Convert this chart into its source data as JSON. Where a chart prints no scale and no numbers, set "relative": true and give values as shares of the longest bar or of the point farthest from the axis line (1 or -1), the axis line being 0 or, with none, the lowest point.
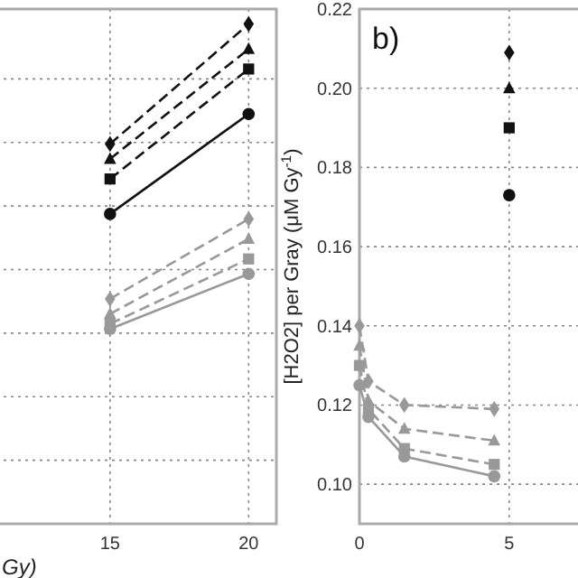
{
  "chart_data": [
    {
      "type": "line",
      "xlabel": "Gy)",
      "relative": true,
      "xlim": [
        10.9,
        21
      ],
      "xticks": [
        15,
        20
      ],
      "tick_labels": "x",
      "grid": true,
      "series": [
        {
          "x": [
            15,
            20
          ],
          "values": [
            0.76,
            1.0
          ],
          "color": "#111111",
          "marker": "diamond",
          "line_style": "dashed"
        },
        {
          "x": [
            15,
            20
          ],
          "values": [
            0.73,
            0.95
          ],
          "color": "#111111",
          "marker": "triangle",
          "line_style": "dashed"
        },
        {
          "x": [
            15,
            20
          ],
          "values": [
            0.69,
            0.91
          ],
          "color": "#111111",
          "marker": "square",
          "line_style": "dashed"
        },
        {
          "x": [
            15,
            20
          ],
          "values": [
            0.62,
            0.82
          ],
          "color": "#111111",
          "marker": "circle",
          "line_style": "solid"
        },
        {
          "x": [
            15,
            20
          ],
          "values": [
            0.45,
            0.61
          ],
          "color": "#999999",
          "marker": "diamond",
          "line_style": "dashed"
        },
        {
          "x": [
            15,
            20
          ],
          "values": [
            0.42,
            0.57
          ],
          "color": "#999999",
          "marker": "triangle",
          "line_style": "dashed"
        },
        {
          "x": [
            15,
            20
          ],
          "values": [
            0.4,
            0.53
          ],
          "color": "#999999",
          "marker": "square",
          "line_style": "dashed"
        },
        {
          "x": [
            15,
            20
          ],
          "values": [
            0.39,
            0.5
          ],
          "color": "#999999",
          "marker": "circle",
          "line_style": "solid"
        }
      ]
    },
    {
      "type": "line",
      "title": "b)",
      "ylabel": "[H2O2] per Gray (μM Gy$^{-1}$)",
      "xlim": [
        0,
        7.9
      ],
      "xticks": [
        0,
        5
      ],
      "ylim": [
        0.09,
        0.22
      ],
      "yticks": [
        {
          "value": 0.1,
          "label": "0.10"
        },
        {
          "value": 0.12,
          "label": "0.12"
        },
        {
          "value": 0.14,
          "label": "0.14"
        },
        {
          "value": 0.16,
          "label": "0.16"
        },
        {
          "value": 0.18,
          "label": "0.18"
        },
        {
          "value": 0.2,
          "label": "0.20"
        },
        {
          "value": 0.22,
          "label": "0.22"
        }
      ],
      "grid": true,
      "series": [
        {
          "x": [
            5
          ],
          "values": [
            0.209
          ],
          "color": "#111111",
          "marker": "diamond",
          "line_style": "dashed"
        },
        {
          "x": [
            5
          ],
          "values": [
            0.2
          ],
          "color": "#111111",
          "marker": "triangle",
          "line_style": "dashed"
        },
        {
          "x": [
            5
          ],
          "values": [
            0.19
          ],
          "color": "#111111",
          "marker": "square",
          "line_style": "dashed"
        },
        {
          "x": [
            5
          ],
          "values": [
            0.173
          ],
          "color": "#111111",
          "marker": "circle",
          "line_style": "solid"
        },
        {
          "x": [
            0,
            0.3,
            1.5,
            4.5
          ],
          "values": [
            0.14,
            0.126,
            0.12,
            0.119
          ],
          "color": "#999999",
          "marker": "diamond",
          "line_style": "dashed"
        },
        {
          "x": [
            0,
            0.3,
            1.5,
            4.5
          ],
          "values": [
            0.135,
            0.121,
            0.114,
            0.111
          ],
          "color": "#999999",
          "marker": "triangle",
          "line_style": "dashed"
        },
        {
          "x": [
            0,
            0.3,
            1.5,
            4.5
          ],
          "values": [
            0.13,
            0.119,
            0.109,
            0.105
          ],
          "color": "#999999",
          "marker": "square",
          "line_style": "dashed"
        },
        {
          "x": [
            0,
            0.3,
            1.5,
            4.5
          ],
          "values": [
            0.125,
            0.117,
            0.107,
            0.102
          ],
          "color": "#999999",
          "marker": "circle",
          "line_style": "solid"
        }
      ]
    }
  ]
}
